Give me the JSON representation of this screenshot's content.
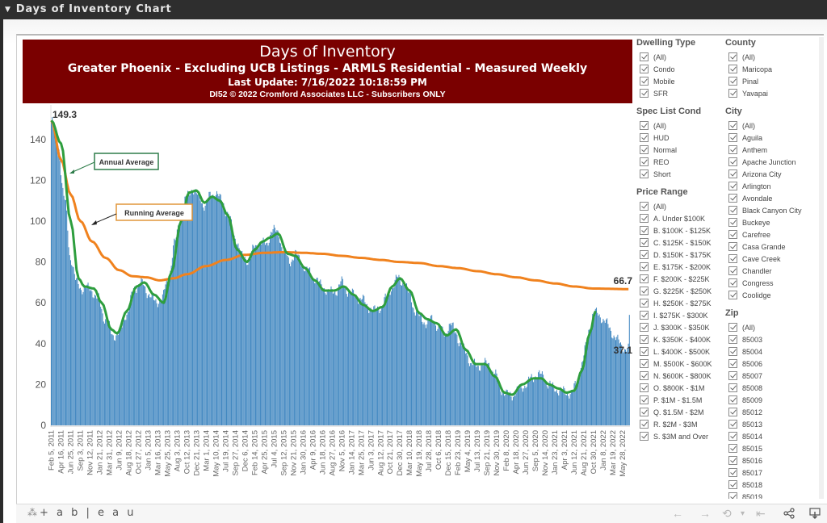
{
  "window": {
    "title": "Days of Inventory Chart",
    "collapse_icon": "caret-down-icon"
  },
  "header": {
    "title": "Days of Inventory",
    "subtitle": "Greater Phoenix - Excluding UCB Listings - ARMLS Residential - Measured Weekly",
    "last_update": "Last Update: 7/16/2022 10:18:59 PM",
    "copyright": "DI52 © 2022 Cromford Associates LLC - Subscribers ONLY",
    "background_color": "#7a0000"
  },
  "chart_data": {
    "type": "bar",
    "title": "Days of Inventory",
    "xlabel": "",
    "ylabel": "",
    "ylim": [
      0,
      150
    ],
    "y_ticks": [
      0,
      20,
      40,
      60,
      80,
      100,
      120,
      140
    ],
    "grid": false,
    "x_tick_labels": [
      "Feb 5, 2011",
      "Apr 16, 2011",
      "Jun 25, 2011",
      "Sep 3, 2011",
      "Nov 12, 2011",
      "Jan 21, 2012",
      "Mar 31, 2012",
      "Jun 9, 2012",
      "Aug 18, 2012",
      "Oct 27, 2012",
      "Jan 5, 2013",
      "Mar 16, 2013",
      "May 25, 2013",
      "Aug 3, 2013",
      "Oct 12, 2013",
      "Dec 21, 2013",
      "Mar 1, 2014",
      "May 10, 2014",
      "Jul 19, 2014",
      "Sep 27, 2014",
      "Dec 6, 2014",
      "Feb 14, 2015",
      "Apr 25, 2015",
      "Jul 4, 2015",
      "Sep 12, 2015",
      "Nov 21, 2015",
      "Jan 30, 2016",
      "Apr 9, 2016",
      "Jun 18, 2016",
      "Aug 27, 2016",
      "Nov 5, 2016",
      "Jan 14, 2017",
      "Mar 25, 2017",
      "Jun 3, 2017",
      "Aug 12, 2017",
      "Oct 21, 2017",
      "Dec 30, 2017",
      "Mar 10, 2018",
      "May 19, 2018",
      "Jul 28, 2018",
      "Oct 6, 2018",
      "Dec 15, 2018",
      "Feb 23, 2019",
      "May 4, 2019",
      "Jul 13, 2019",
      "Sep 21, 2019",
      "Nov 30, 2019",
      "Feb 8, 2020",
      "Apr 18, 2020",
      "Jun 27, 2020",
      "Sep 5, 2020",
      "Nov 14, 2020",
      "Jan 23, 2021",
      "Apr 3, 2021",
      "Jun 12, 2021",
      "Aug 21, 2021",
      "Oct 30, 2021",
      "Jan 8, 2022",
      "Mar 19, 2022",
      "May 28, 2022"
    ],
    "weeks_per_tick": 10,
    "total_weeks": 598,
    "series": [
      {
        "name": "Days of Inventory (weekly)",
        "type": "bar",
        "color": "#3f86c0",
        "keypoints_week_value": [
          [
            0,
            149.3
          ],
          [
            6,
            140
          ],
          [
            14,
            110
          ],
          [
            20,
            82
          ],
          [
            26,
            70
          ],
          [
            32,
            67
          ],
          [
            40,
            67
          ],
          [
            48,
            62
          ],
          [
            56,
            52
          ],
          [
            64,
            44
          ],
          [
            70,
            45
          ],
          [
            78,
            55
          ],
          [
            86,
            67
          ],
          [
            92,
            70
          ],
          [
            100,
            65
          ],
          [
            108,
            60
          ],
          [
            114,
            62
          ],
          [
            120,
            70
          ],
          [
            128,
            90
          ],
          [
            134,
            104
          ],
          [
            140,
            112
          ],
          [
            146,
            116
          ],
          [
            152,
            112
          ],
          [
            158,
            108
          ],
          [
            164,
            112
          ],
          [
            170,
            114
          ],
          [
            176,
            110
          ],
          [
            182,
            104
          ],
          [
            190,
            92
          ],
          [
            198,
            82
          ],
          [
            204,
            81
          ],
          [
            210,
            87
          ],
          [
            216,
            90
          ],
          [
            222,
            88
          ],
          [
            228,
            96
          ],
          [
            234,
            94
          ],
          [
            240,
            86
          ],
          [
            246,
            80
          ],
          [
            252,
            84
          ],
          [
            258,
            80
          ],
          [
            264,
            76
          ],
          [
            272,
            72
          ],
          [
            280,
            68
          ],
          [
            288,
            65
          ],
          [
            294,
            66
          ],
          [
            300,
            70
          ],
          [
            306,
            66
          ],
          [
            312,
            64
          ],
          [
            320,
            62
          ],
          [
            328,
            58
          ],
          [
            334,
            56
          ],
          [
            340,
            58
          ],
          [
            346,
            62
          ],
          [
            352,
            68
          ],
          [
            358,
            72
          ],
          [
            364,
            70
          ],
          [
            370,
            64
          ],
          [
            376,
            56
          ],
          [
            382,
            52
          ],
          [
            388,
            50
          ],
          [
            394,
            52
          ],
          [
            400,
            48
          ],
          [
            406,
            45
          ],
          [
            412,
            49
          ],
          [
            418,
            46
          ],
          [
            422,
            40
          ],
          [
            428,
            36
          ],
          [
            434,
            30
          ],
          [
            440,
            29
          ],
          [
            446,
            30
          ],
          [
            452,
            30
          ],
          [
            458,
            25
          ],
          [
            464,
            18
          ],
          [
            470,
            15
          ],
          [
            476,
            15
          ],
          [
            482,
            17
          ],
          [
            490,
            20
          ],
          [
            496,
            23
          ],
          [
            502,
            25
          ],
          [
            508,
            24
          ],
          [
            514,
            20
          ],
          [
            520,
            18
          ],
          [
            526,
            17
          ],
          [
            532,
            16
          ],
          [
            538,
            16
          ],
          [
            542,
            20
          ],
          [
            548,
            30
          ],
          [
            552,
            38
          ],
          [
            556,
            48
          ],
          [
            560,
            55
          ],
          [
            597,
            37.1
          ]
        ]
      },
      {
        "name": "Annual Average",
        "type": "line",
        "color": "#2e9e3e",
        "keypoints_week_value": [
          [
            0,
            149.3
          ],
          [
            10,
            138
          ],
          [
            20,
            100
          ],
          [
            28,
            72
          ],
          [
            34,
            68
          ],
          [
            44,
            67
          ],
          [
            52,
            60
          ],
          [
            62,
            47
          ],
          [
            68,
            45
          ],
          [
            78,
            56
          ],
          [
            88,
            68
          ],
          [
            96,
            70
          ],
          [
            106,
            64
          ],
          [
            116,
            60
          ],
          [
            124,
            75
          ],
          [
            134,
            100
          ],
          [
            142,
            114
          ],
          [
            150,
            115
          ],
          [
            158,
            109
          ],
          [
            166,
            112
          ],
          [
            174,
            110
          ],
          [
            182,
            103
          ],
          [
            192,
            86
          ],
          [
            202,
            80
          ],
          [
            210,
            86
          ],
          [
            218,
            90
          ],
          [
            226,
            92
          ],
          [
            234,
            94
          ],
          [
            244,
            84
          ],
          [
            252,
            83
          ],
          [
            262,
            77
          ],
          [
            272,
            71
          ],
          [
            282,
            66
          ],
          [
            292,
            66
          ],
          [
            302,
            68
          ],
          [
            312,
            64
          ],
          [
            322,
            59
          ],
          [
            332,
            56
          ],
          [
            342,
            58
          ],
          [
            352,
            68
          ],
          [
            360,
            72
          ],
          [
            370,
            66
          ],
          [
            380,
            55
          ],
          [
            388,
            52
          ],
          [
            398,
            50
          ],
          [
            408,
            44
          ],
          [
            418,
            47
          ],
          [
            428,
            37
          ],
          [
            438,
            30
          ],
          [
            448,
            30
          ],
          [
            458,
            24
          ],
          [
            468,
            16
          ],
          [
            476,
            15
          ],
          [
            486,
            20
          ],
          [
            498,
            23
          ],
          [
            506,
            23
          ],
          [
            514,
            20
          ],
          [
            524,
            18
          ],
          [
            532,
            16
          ],
          [
            540,
            17
          ],
          [
            548,
            27
          ],
          [
            556,
            45
          ],
          [
            562,
            56
          ]
        ]
      },
      {
        "name": "Running Average",
        "type": "line",
        "color": "#f0821e",
        "keypoints_week_value": [
          [
            0,
            149.3
          ],
          [
            10,
            130
          ],
          [
            20,
            113
          ],
          [
            30,
            100
          ],
          [
            42,
            90
          ],
          [
            56,
            82
          ],
          [
            70,
            76
          ],
          [
            84,
            73
          ],
          [
            98,
            72.5
          ],
          [
            112,
            71
          ],
          [
            126,
            72
          ],
          [
            140,
            74
          ],
          [
            160,
            78
          ],
          [
            180,
            81
          ],
          [
            200,
            83.5
          ],
          [
            220,
            84.5
          ],
          [
            240,
            84.8
          ],
          [
            260,
            84.5
          ],
          [
            280,
            84
          ],
          [
            300,
            83
          ],
          [
            320,
            82
          ],
          [
            340,
            81
          ],
          [
            360,
            80
          ],
          [
            380,
            79.5
          ],
          [
            400,
            78
          ],
          [
            420,
            77
          ],
          [
            440,
            75.5
          ],
          [
            460,
            74
          ],
          [
            480,
            72.5
          ],
          [
            500,
            71
          ],
          [
            520,
            69.5
          ],
          [
            540,
            68
          ],
          [
            560,
            67
          ],
          [
            597,
            66.7
          ]
        ]
      }
    ],
    "data_labels": [
      {
        "text": "149.3",
        "week": 0,
        "value": 149.3
      },
      {
        "text": "66.7",
        "week": 597,
        "value": 66.7,
        "series": "Running Average"
      },
      {
        "text": "37.1",
        "week": 597,
        "value": 37.1,
        "series": "Days of Inventory (weekly)"
      }
    ],
    "annotations": [
      {
        "text": "Annual Average",
        "border_color": "#2e7d4a",
        "points_to_week": 12
      },
      {
        "text": "Running Average",
        "border_color": "#e0963a",
        "points_to_week": 24
      }
    ]
  },
  "filters": {
    "columns": [
      [
        {
          "title": "Dwelling Type",
          "items": [
            "(All)",
            "Condo",
            "Mobile",
            "SFR"
          ]
        },
        {
          "title": "Spec List Cond",
          "items": [
            "(All)",
            "HUD",
            "Normal",
            "REO",
            "Short"
          ]
        },
        {
          "title": "Price Range",
          "items": [
            "(All)",
            "A. Under $100K",
            "B. $100K - $125K",
            "C. $125K - $150K",
            "D. $150K - $175K",
            "E. $175K - $200K",
            "F. $200K - $225K",
            "G. $225K - $250K",
            "H. $250K - $275K",
            "I. $275K - $300K",
            "J. $300K - $350K",
            "K. $350K - $400K",
            "L. $400K - $500K",
            "M. $500K - $600K",
            "N. $600K - $800K",
            "O. $800K - $1M",
            "P. $1M - $1.5M",
            "Q. $1.5M - $2M",
            "R. $2M - $3M",
            "S. $3M and Over"
          ]
        }
      ],
      [
        {
          "title": "County",
          "items": [
            "(All)",
            "Maricopa",
            "Pinal",
            "Yavapai"
          ]
        },
        {
          "title": "City",
          "items": [
            "(All)",
            "Aguila",
            "Anthem",
            "Apache Junction",
            "Arizona City",
            "Arlington",
            "Avondale",
            "Black Canyon City",
            "Buckeye",
            "Carefree",
            "Casa Grande",
            "Cave Creek",
            "Chandler",
            "Congress",
            "Coolidge"
          ]
        },
        {
          "title": "Zip",
          "items": [
            "(All)",
            "85003",
            "85004",
            "85006",
            "85007",
            "85008",
            "85009",
            "85012",
            "85013",
            "85014",
            "85015",
            "85016",
            "85017",
            "85018",
            "85019"
          ]
        }
      ]
    ],
    "all_checked": true
  },
  "footer": {
    "brand": "+ a b | e a u",
    "brand_icon": "tableau-logo-icon",
    "toolbar": [
      {
        "name": "undo-button",
        "icon": "←",
        "enabled": false
      },
      {
        "name": "redo-button",
        "icon": "→",
        "enabled": false
      },
      {
        "name": "revert-button",
        "icon": "⟲",
        "enabled": false
      },
      {
        "name": "revert-dropdown",
        "icon": "▾",
        "enabled": false
      },
      {
        "name": "reset-button",
        "icon": "⇤",
        "enabled": false
      },
      {
        "name": "share-button",
        "icon": "share",
        "enabled": true
      },
      {
        "name": "download-button",
        "icon": "download",
        "enabled": true
      }
    ]
  }
}
